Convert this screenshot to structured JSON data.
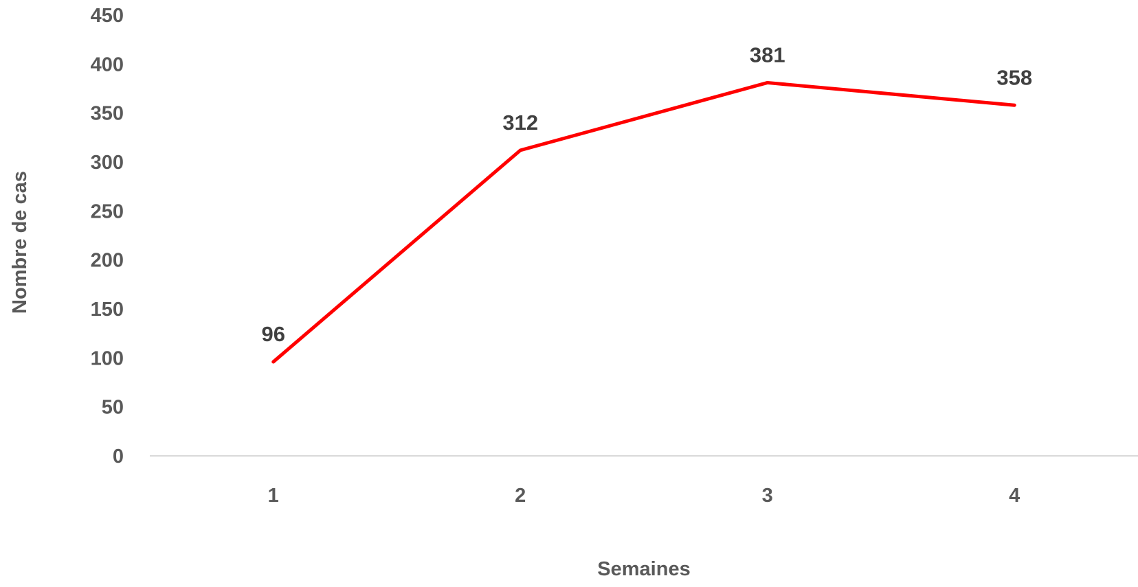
{
  "chart_data": {
    "type": "line",
    "title": "",
    "xlabel": "Semaines",
    "ylabel": "Nombre de cas",
    "categories": [
      "1",
      "2",
      "3",
      "4"
    ],
    "ylim": [
      0,
      450
    ],
    "yticks": [
      0,
      50,
      100,
      150,
      200,
      250,
      300,
      350,
      400,
      450
    ],
    "grid": false,
    "legend": "none",
    "series": [
      {
        "values": [
          96,
          312,
          381,
          358
        ],
        "color": "#ff0000"
      }
    ],
    "data_labels": [
      "96",
      "312",
      "381",
      "358"
    ]
  }
}
